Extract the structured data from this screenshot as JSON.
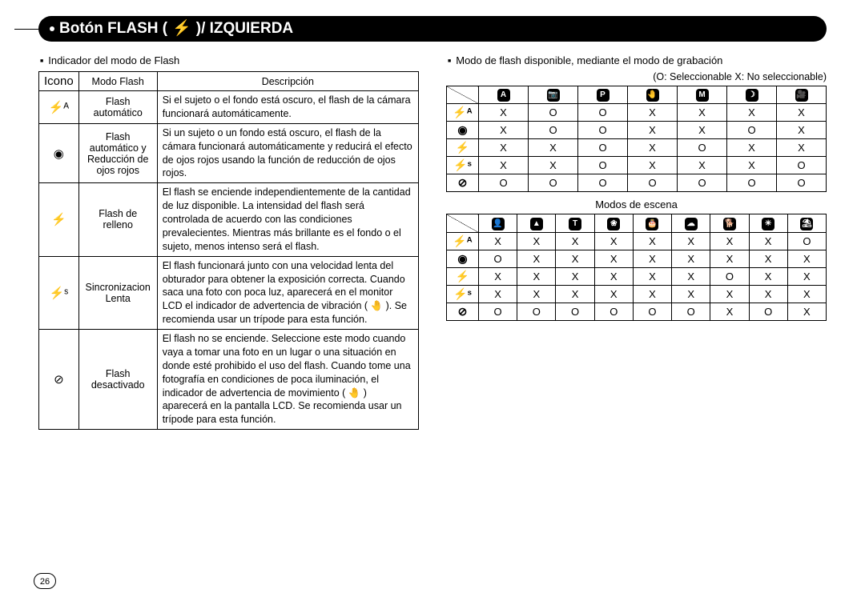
{
  "page_number": "26",
  "title_parts": {
    "pre": "Botón FLASH (",
    "icon": "⚡",
    "post": ")/ IZQUIERDA"
  },
  "left": {
    "heading": "Indicador del modo de Flash",
    "table_headers": {
      "icono": "Icono",
      "modo": "Modo Flash",
      "desc": "Descripción"
    },
    "rows": [
      {
        "icon": "⚡ᴬ",
        "mode": "Flash automático",
        "desc": "Si el sujeto o el fondo está oscuro, el flash de la cámara funcionará automáticamente."
      },
      {
        "icon": "◉",
        "mode": "Flash automático y Reducción de ojos rojos",
        "desc": "Si un sujeto o un fondo está oscuro, el flash de la cámara funcionará automáticamente y reducirá el efecto de ojos rojos usando la función de reducción de ojos rojos."
      },
      {
        "icon": "⚡",
        "mode": "Flash de relleno",
        "desc": "El flash se enciende independientemente de la cantidad de luz disponible. La intensidad del flash será controlada de acuerdo con las condiciones prevalecientes. Mientras más brillante es el fondo o el sujeto, menos intenso será el flash."
      },
      {
        "icon": "⚡ˢ",
        "mode": "Sincronizacion Lenta",
        "desc": "El flash funcionará junto con una velocidad lenta del obturador para obtener la exposición correcta. Cuando saca una foto con poca luz, aparecerá en el monitor LCD el indicador de advertencia de vibración ( 🤚 ). Se recomienda usar un trípode para esta función."
      },
      {
        "icon": "⊘",
        "mode": "Flash desactivado",
        "desc": "El flash no se enciende. Seleccione este modo cuando vaya a tomar una foto en un lugar o una situación en donde esté prohibido el uso del flash. Cuando tome una fotografía en condiciones de poca iluminación, el indicador de advertencia de movimiento ( 🤚 ) aparecerá en la pantalla LCD. Se recomienda usar un trípode para esta función."
      }
    ]
  },
  "right": {
    "heading": "Modo de flash disponible, mediante el modo de grabación",
    "legend": "(O: Seleccionable X: No seleccionable)",
    "row_icons": [
      "⚡ᴬ",
      "◉",
      "⚡",
      "⚡ˢ",
      "⊘"
    ],
    "table1": {
      "col_icons": [
        "A",
        "📷",
        "P",
        "🤚",
        "M",
        "☽",
        "🎥"
      ],
      "data": [
        [
          "X",
          "O",
          "O",
          "X",
          "X",
          "X",
          "X"
        ],
        [
          "X",
          "O",
          "O",
          "X",
          "X",
          "O",
          "X"
        ],
        [
          "X",
          "X",
          "O",
          "X",
          "O",
          "X",
          "X"
        ],
        [
          "X",
          "X",
          "O",
          "X",
          "X",
          "X",
          "O"
        ],
        [
          "O",
          "O",
          "O",
          "O",
          "O",
          "O",
          "O"
        ]
      ]
    },
    "scene_label": "Modos de escena",
    "table2": {
      "col_icons": [
        "👤",
        "▲",
        "T",
        "❀",
        "🎂",
        "☁",
        "🐕",
        "☀",
        "⛱"
      ],
      "data": [
        [
          "X",
          "X",
          "X",
          "X",
          "X",
          "X",
          "X",
          "X",
          "O"
        ],
        [
          "O",
          "X",
          "X",
          "X",
          "X",
          "X",
          "X",
          "X",
          "X"
        ],
        [
          "X",
          "X",
          "X",
          "X",
          "X",
          "X",
          "O",
          "X",
          "X"
        ],
        [
          "X",
          "X",
          "X",
          "X",
          "X",
          "X",
          "X",
          "X",
          "X"
        ],
        [
          "O",
          "O",
          "O",
          "O",
          "O",
          "O",
          "X",
          "O",
          "X"
        ]
      ]
    }
  }
}
